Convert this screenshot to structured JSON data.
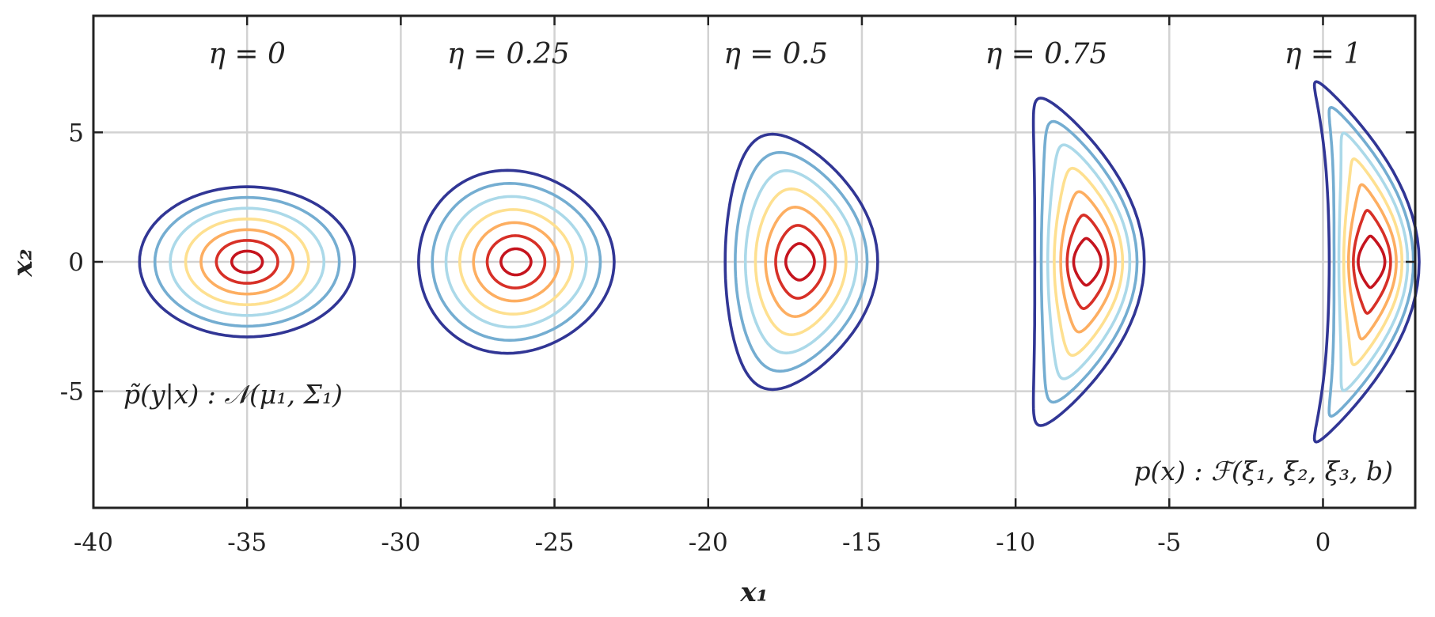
{
  "chart_data": {
    "type": "contour",
    "xlabel": "x₁",
    "ylabel": "x₂",
    "xlim": [
      -40,
      3
    ],
    "ylim": [
      -9.5,
      9.5
    ],
    "xticks": [
      -40,
      -35,
      -30,
      -25,
      -20,
      -15,
      -10,
      -5,
      0
    ],
    "yticks": [
      -5,
      0,
      5
    ],
    "xtick_labels": [
      "-40",
      "-35",
      "-30",
      "-25",
      "-20",
      "-15",
      "-10",
      "-5",
      "0"
    ],
    "ytick_labels": [
      "-5",
      "0",
      "5"
    ],
    "grid": true,
    "contour_levels": 7,
    "level_colors": [
      "#313695",
      "#4575b4",
      "#74add1",
      "#abd9e9",
      "#e0f3f8",
      "#fee090",
      "#fdae61",
      "#f46d43",
      "#d73027",
      "#c5141e"
    ],
    "panels": [
      {
        "label": "η = 0",
        "eta": 0,
        "center_x": -35
      },
      {
        "label": "η = 0.25",
        "eta": 0.25,
        "center_x": -26.5
      },
      {
        "label": "η = 0.5",
        "eta": 0.5,
        "center_x": -17.8
      },
      {
        "label": "η = 0.75",
        "eta": 0.75,
        "center_x": -9
      },
      {
        "label": "η = 1",
        "eta": 1,
        "center_x": 0
      }
    ],
    "annotations": {
      "source": "p̃(y|x) : 𝒩(μ₁, Σ₁)",
      "target": "p(x) : ℱ(ξ₁, ξ₂, ξ₃, b)"
    }
  }
}
